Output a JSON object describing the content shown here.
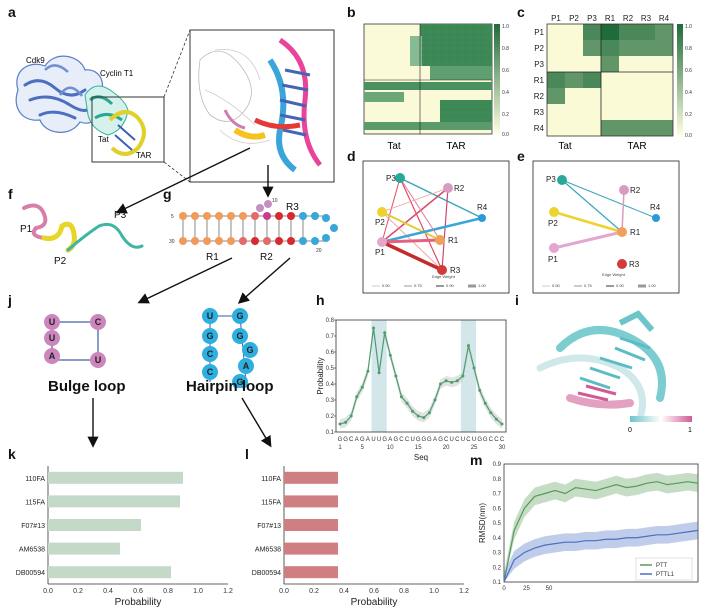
{
  "panels": {
    "a": "a",
    "b": "b",
    "c": "c",
    "d": "d",
    "e": "e",
    "f": "f",
    "g": "g",
    "h": "h",
    "i": "i",
    "j": "j",
    "k": "k",
    "l": "l",
    "m": "m"
  },
  "panel_a": {
    "cdk9": "Cdk9",
    "cyclin": "Cyclin T1",
    "tat": "Tat",
    "tar": "TAR"
  },
  "panel_b": {
    "xlabels": [
      "Tat",
      "TAR"
    ],
    "colorbar_ticks": [
      "1.0",
      "0.8",
      "0.6",
      "0.4",
      "0.2",
      "0.0"
    ]
  },
  "panel_c": {
    "col_labels": [
      "P1",
      "P2",
      "P3",
      "R1",
      "R2",
      "R3",
      "R4"
    ],
    "row_labels": [
      "P1",
      "P2",
      "P3",
      "R1",
      "R2",
      "R3",
      "R4"
    ],
    "xlabels": [
      "Tat",
      "TAR"
    ],
    "colorbar_ticks": [
      "1.0",
      "0.8",
      "0.6",
      "0.4",
      "0.2",
      "0.0"
    ],
    "matrix": [
      [
        0,
        0,
        0.8,
        1.0,
        0.8,
        0.8,
        0.7
      ],
      [
        0,
        0,
        0.7,
        0.8,
        0.7,
        0.7,
        0.7
      ],
      [
        0,
        0,
        0,
        0.7,
        0,
        0,
        0
      ],
      [
        0.8,
        0.7,
        0.8,
        0,
        0,
        0,
        0
      ],
      [
        0.7,
        0,
        0,
        0,
        0,
        0,
        0
      ],
      [
        0,
        0,
        0,
        0,
        0,
        0,
        0
      ],
      [
        0,
        0,
        0,
        0.7,
        0.7,
        0.7,
        0.7
      ]
    ]
  },
  "panel_d": {
    "nodes": [
      "P3",
      "R2",
      "P2",
      "R4",
      "R1",
      "P1",
      "R3"
    ],
    "legend_title": "Edge Weight",
    "legend_values": [
      "0.50",
      "0.75",
      "0.90",
      "1.00"
    ]
  },
  "panel_e": {
    "nodes": [
      "P3",
      "R2",
      "P2",
      "R4",
      "R1",
      "P1",
      "R3"
    ],
    "legend_title": "Edge Weight",
    "legend_values": [
      "0.50",
      "0.75",
      "0.90",
      "1.00"
    ]
  },
  "panel_f": {
    "labels": [
      "P1",
      "P2",
      "P3"
    ]
  },
  "panel_g": {
    "regions": [
      "R1",
      "R2",
      "R3"
    ],
    "ticks": [
      "5",
      "30",
      "10",
      "20"
    ]
  },
  "panel_j": {
    "bulge_title": "Bulge loop",
    "hairpin_title": "Hairpin loop",
    "bulge_bases": [
      "U",
      "C",
      "U",
      "A",
      "U"
    ],
    "hairpin_bases": [
      "U",
      "G",
      "G",
      "G",
      "C",
      "G",
      "C",
      "A",
      "C",
      "G"
    ]
  },
  "panel_i": {
    "cb_min": "0",
    "cb_max": "1"
  },
  "chart_data": [
    {
      "id": "h",
      "type": "line",
      "xlabel": "Seq",
      "ylabel": "Probability",
      "ylim": [
        0.1,
        0.8
      ],
      "yticks": [
        "0.1",
        "0.2",
        "0.3",
        "0.4",
        "0.5",
        "0.6",
        "0.7",
        "0.8"
      ],
      "xticks": [
        "1",
        "5",
        "10",
        "15",
        "20",
        "25",
        "30"
      ],
      "sequence": [
        "G",
        "G",
        "C",
        "A",
        "G",
        "A",
        "U",
        "U",
        "G",
        "A",
        "G",
        "C",
        "C",
        "U",
        "G",
        "G",
        "G",
        "A",
        "G",
        "C",
        "U",
        "C",
        "U",
        "C",
        "U",
        "G",
        "G",
        "C",
        "C",
        "C"
      ],
      "x": [
        1,
        2,
        3,
        4,
        5,
        6,
        7,
        8,
        9,
        10,
        11,
        12,
        13,
        14,
        15,
        16,
        17,
        18,
        19,
        20,
        21,
        22,
        23,
        24,
        25,
        26,
        27,
        28,
        29,
        30
      ],
      "values": [
        0.15,
        0.16,
        0.2,
        0.32,
        0.38,
        0.48,
        0.75,
        0.47,
        0.72,
        0.58,
        0.45,
        0.32,
        0.28,
        0.23,
        0.2,
        0.19,
        0.22,
        0.3,
        0.4,
        0.42,
        0.41,
        0.42,
        0.45,
        0.64,
        0.5,
        0.36,
        0.28,
        0.22,
        0.18,
        0.15
      ],
      "highlight_x": [
        [
          7,
          9
        ],
        [
          23,
          25
        ]
      ]
    },
    {
      "id": "k",
      "type": "bar",
      "orientation": "horizontal",
      "xlabel": "Probability",
      "xlim": [
        0,
        1.2
      ],
      "xticks": [
        "0.0",
        "0.2",
        "0.4",
        "0.6",
        "0.8",
        "1.0",
        "1.2"
      ],
      "categories": [
        "110FA",
        "115FA",
        "F07#13",
        "AM6538",
        "DB00594"
      ],
      "values": [
        0.9,
        0.88,
        0.62,
        0.48,
        0.82
      ],
      "color": "#c5d9c9"
    },
    {
      "id": "l",
      "type": "bar",
      "orientation": "horizontal",
      "xlabel": "Probability",
      "xlim": [
        0,
        1.2
      ],
      "xticks": [
        "0.0",
        "0.2",
        "0.4",
        "0.6",
        "0.8",
        "1.0",
        "1.2"
      ],
      "categories": [
        "110FA",
        "115FA",
        "F07#13",
        "AM6538",
        "DB00594"
      ],
      "values": [
        0.36,
        0.36,
        0.36,
        0.36,
        0.36
      ],
      "color": "#cf7f82"
    },
    {
      "id": "m",
      "type": "line",
      "ylabel": "RMSD(nm)",
      "ylim": [
        0.1,
        0.9
      ],
      "yticks": [
        "0.1",
        "0.2",
        "0.3",
        "0.4",
        "0.5",
        "0.6",
        "0.7",
        "0.8",
        "0.9"
      ],
      "xticks": [
        "0",
        "25",
        "50"
      ],
      "series": [
        {
          "name": "PTT",
          "color": "#5a9a5a",
          "values": [
            0.1,
            0.45,
            0.6,
            0.68,
            0.7,
            0.72,
            0.7,
            0.74,
            0.73,
            0.72,
            0.74,
            0.76,
            0.74,
            0.75,
            0.77,
            0.78,
            0.76,
            0.77,
            0.78,
            0.77
          ]
        },
        {
          "name": "PTTL1",
          "color": "#4a6fc4",
          "values": [
            0.1,
            0.25,
            0.3,
            0.33,
            0.35,
            0.36,
            0.37,
            0.37,
            0.38,
            0.38,
            0.39,
            0.39,
            0.4,
            0.4,
            0.41,
            0.42,
            0.42,
            0.43,
            0.44,
            0.45
          ]
        }
      ]
    }
  ]
}
